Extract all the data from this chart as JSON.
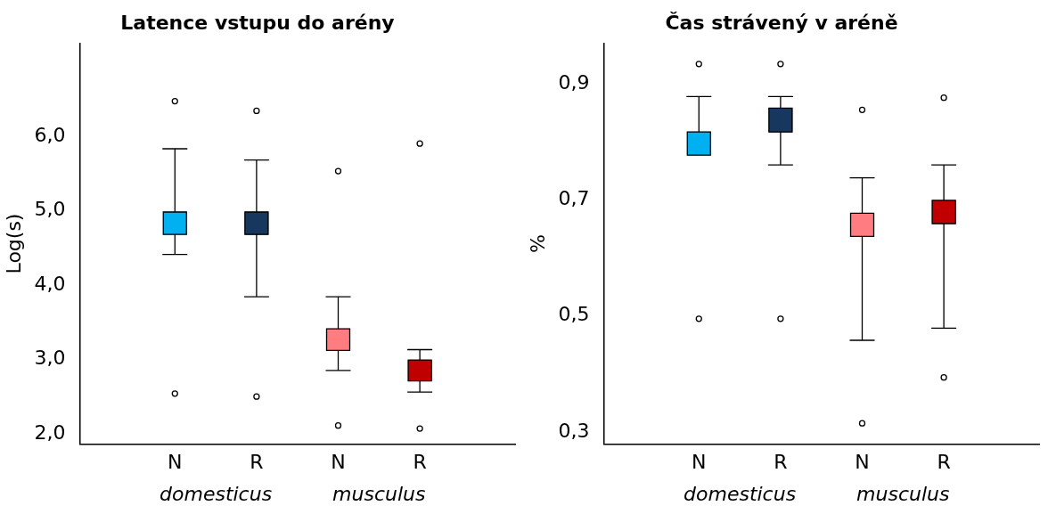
{
  "chart_data": [
    {
      "type": "box",
      "title": "Latence vstupu do arény",
      "ylabel": "Log(s)",
      "categories": [
        "N",
        "R",
        "N",
        "R"
      ],
      "annotations": [
        "domesticus",
        "musculus"
      ],
      "colors": [
        "#00b0f0",
        "#17375e",
        "#ff7c80",
        "#c00000"
      ],
      "ylim": [
        1.86,
        7.25
      ],
      "yticks": [
        {
          "value": 2,
          "label": "2,0"
        },
        {
          "value": 3,
          "label": "3,0"
        },
        {
          "value": 4,
          "label": "4,0"
        },
        {
          "value": 5,
          "label": "5,0"
        },
        {
          "value": 6,
          "label": "6,0"
        }
      ],
      "grid": false,
      "boxes": [
        {
          "low": 4.41,
          "q1": 4.68,
          "median": 4.83,
          "q3": 4.98,
          "high": 5.83,
          "outliers": [
            6.47,
            2.54
          ]
        },
        {
          "low": 3.84,
          "q1": 4.68,
          "median": 4.83,
          "q3": 4.98,
          "high": 5.68,
          "outliers": [
            6.34,
            2.5
          ]
        },
        {
          "low": 2.85,
          "q1": 3.12,
          "median": 3.27,
          "q3": 3.41,
          "high": 3.84,
          "outliers": [
            5.53,
            2.11
          ]
        },
        {
          "low": 2.56,
          "q1": 2.71,
          "median": 2.85,
          "q3": 2.99,
          "high": 3.13,
          "outliers": [
            5.9,
            2.07
          ]
        }
      ]
    },
    {
      "type": "box",
      "title": "Čas strávený v aréně",
      "ylabel": "%",
      "categories": [
        "N",
        "R",
        "N",
        "R"
      ],
      "annotations": [
        "domesticus",
        "musculus"
      ],
      "colors": [
        "#00b0f0",
        "#17375e",
        "#ff7c80",
        "#c00000"
      ],
      "ylim": [
        0.279,
        0.97
      ],
      "yticks": [
        {
          "value": 0.3,
          "label": "0,3"
        },
        {
          "value": 0.5,
          "label": "0,5"
        },
        {
          "value": 0.7,
          "label": "0,7"
        },
        {
          "value": 0.9,
          "label": "0,9"
        }
      ],
      "grid": false,
      "boxes": [
        {
          "low": 0.777,
          "q1": 0.777,
          "median": 0.797,
          "q3": 0.817,
          "high": 0.878,
          "outliers": [
            0.934,
            0.495
          ]
        },
        {
          "low": 0.76,
          "q1": 0.817,
          "median": 0.838,
          "q3": 0.858,
          "high": 0.878,
          "outliers": [
            0.934,
            0.495
          ]
        },
        {
          "low": 0.458,
          "q1": 0.637,
          "median": 0.657,
          "q3": 0.677,
          "high": 0.738,
          "outliers": [
            0.855,
            0.315
          ]
        },
        {
          "low": 0.479,
          "q1": 0.659,
          "median": 0.679,
          "q3": 0.699,
          "high": 0.76,
          "outliers": [
            0.876,
            0.394
          ]
        }
      ]
    }
  ]
}
